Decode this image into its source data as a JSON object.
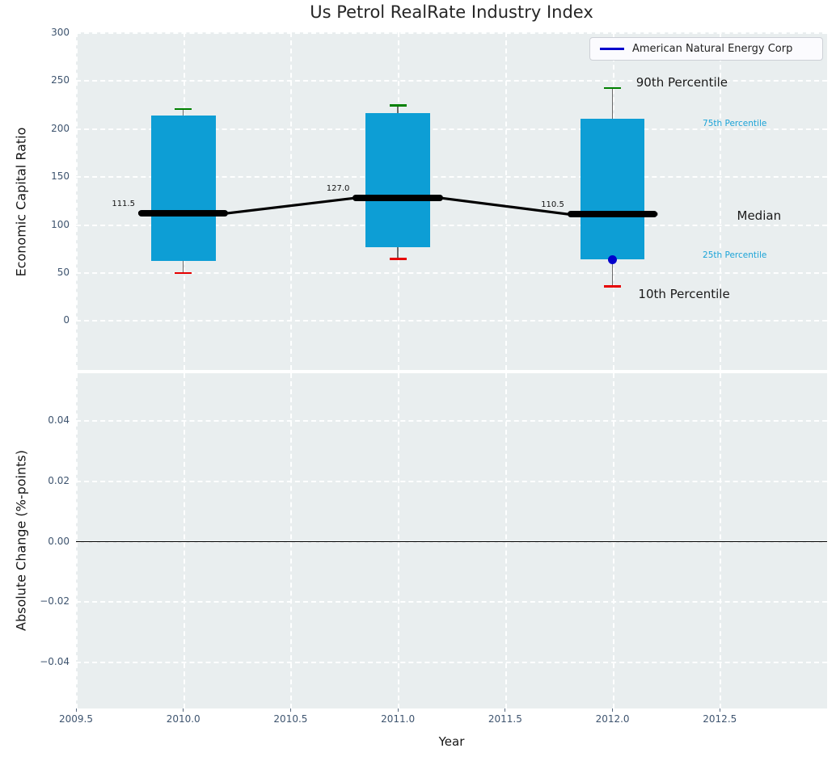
{
  "legend": {
    "label": "American Natural Energy Corp",
    "line_color": "#0000cc"
  },
  "colors": {
    "plot_bg": "#e9eeef",
    "grid": "#ffffff",
    "tick_label": "#3e546f",
    "box_fill": "#0d9ed5",
    "cap_90th": "#008000",
    "cap_10th": "#e60000",
    "whisker": "#6a6a6a",
    "median_line": "#000000",
    "percentile_text": "#1ba3d7",
    "company": "#0000cc",
    "zero_line": "#000000"
  },
  "chart_data": [
    {
      "type": "box",
      "title": "Us Petrol RealRate Industry Index",
      "ylabel": "Economic Capital Ratio",
      "xlim": [
        2009.5,
        2013.0
      ],
      "ylim": [
        -52,
        300
      ],
      "grid": true,
      "legend_position": "upper right",
      "yticks": [
        {
          "v": 300,
          "label": "300"
        },
        {
          "v": 250,
          "label": "250"
        },
        {
          "v": 200,
          "label": "200"
        },
        {
          "v": 150,
          "label": "150"
        },
        {
          "v": 100,
          "label": "100"
        },
        {
          "v": 50,
          "label": "50"
        },
        {
          "v": 0,
          "label": "0"
        }
      ],
      "box_width_years": 0.3,
      "median_width_years": 0.42,
      "cap_width_years": 0.08,
      "boxes": [
        {
          "x": 2010,
          "p10": 49,
          "p25": 62,
          "median": 111.5,
          "p75": 213,
          "p90": 220,
          "median_label": "111.5"
        },
        {
          "x": 2011,
          "p10": 64,
          "p25": 76,
          "median": 127.0,
          "p75": 216,
          "p90": 224,
          "median_label": "127.0"
        },
        {
          "x": 2012,
          "p10": 35,
          "p25": 63,
          "median": 110.5,
          "p75": 210,
          "p90": 242,
          "median_label": "110.5"
        }
      ],
      "median_line_values": [
        {
          "x": 2010,
          "y": 111.5
        },
        {
          "x": 2011,
          "y": 127.0
        },
        {
          "x": 2012,
          "y": 110.5
        }
      ],
      "series": [
        {
          "name": "American Natural Energy Corp",
          "color": "#0000cc",
          "points": [
            {
              "x": 2012,
              "y": 63
            }
          ]
        }
      ],
      "annotations": [
        {
          "text": "90th Percentile",
          "x": 2012.11,
          "y": 248,
          "style": "large"
        },
        {
          "text": "75th Percentile",
          "x": 2012.42,
          "y": 205,
          "style": "small"
        },
        {
          "text": "Median",
          "x": 2012.58,
          "y": 109,
          "style": "large"
        },
        {
          "text": "25th Percentile",
          "x": 2012.42,
          "y": 68,
          "style": "small"
        },
        {
          "text": "10th Percentile",
          "x": 2012.12,
          "y": 27,
          "style": "large"
        }
      ]
    },
    {
      "type": "line",
      "ylabel": "Absolute Change (%-points)",
      "xlabel": "Year",
      "xlim": [
        2009.5,
        2013.0
      ],
      "ylim": [
        -0.0555,
        0.0555
      ],
      "grid": true,
      "zero_line": true,
      "yticks": [
        {
          "v": 0.04,
          "label": "0.04"
        },
        {
          "v": 0.02,
          "label": "0.02"
        },
        {
          "v": 0.0,
          "label": "0.00"
        },
        {
          "v": -0.02,
          "label": "−0.02"
        },
        {
          "v": -0.04,
          "label": "−0.04"
        }
      ],
      "xticks": [
        {
          "v": 2009.5,
          "label": "2009.5"
        },
        {
          "v": 2010.0,
          "label": "2010.0"
        },
        {
          "v": 2010.5,
          "label": "2010.5"
        },
        {
          "v": 2011.0,
          "label": "2011.0"
        },
        {
          "v": 2011.5,
          "label": "2011.5"
        },
        {
          "v": 2012.0,
          "label": "2012.0"
        },
        {
          "v": 2012.5,
          "label": "2012.5"
        }
      ],
      "series": []
    }
  ]
}
